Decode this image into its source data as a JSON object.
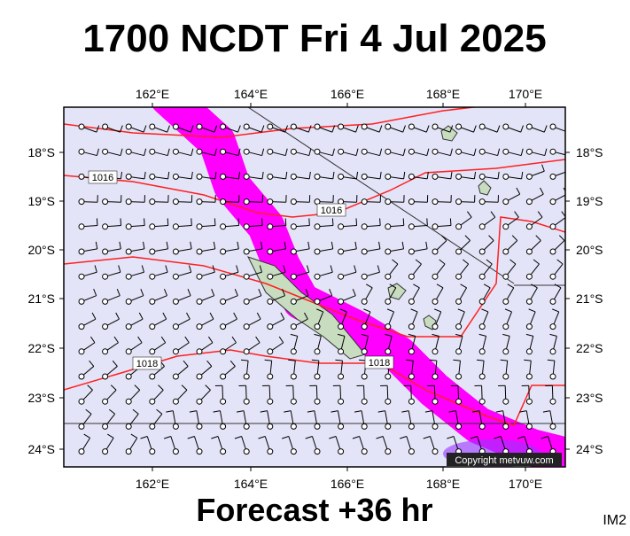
{
  "header": {
    "title": "1700 NCDT Fri 4 Jul 2025"
  },
  "map": {
    "lon_labels": [
      "162°E",
      "164°E",
      "166°E",
      "168°E",
      "170°E"
    ],
    "lat_labels": [
      "18°S",
      "19°S",
      "20°S",
      "21°S",
      "22°S",
      "23°S",
      "24°S"
    ],
    "isobar_labels": [
      "1016",
      "1016",
      "1018",
      "1018"
    ],
    "copyright": "Copyright metvuw.com"
  },
  "footer": {
    "forecast": "Forecast +36 hr",
    "image_id": "IM2"
  }
}
